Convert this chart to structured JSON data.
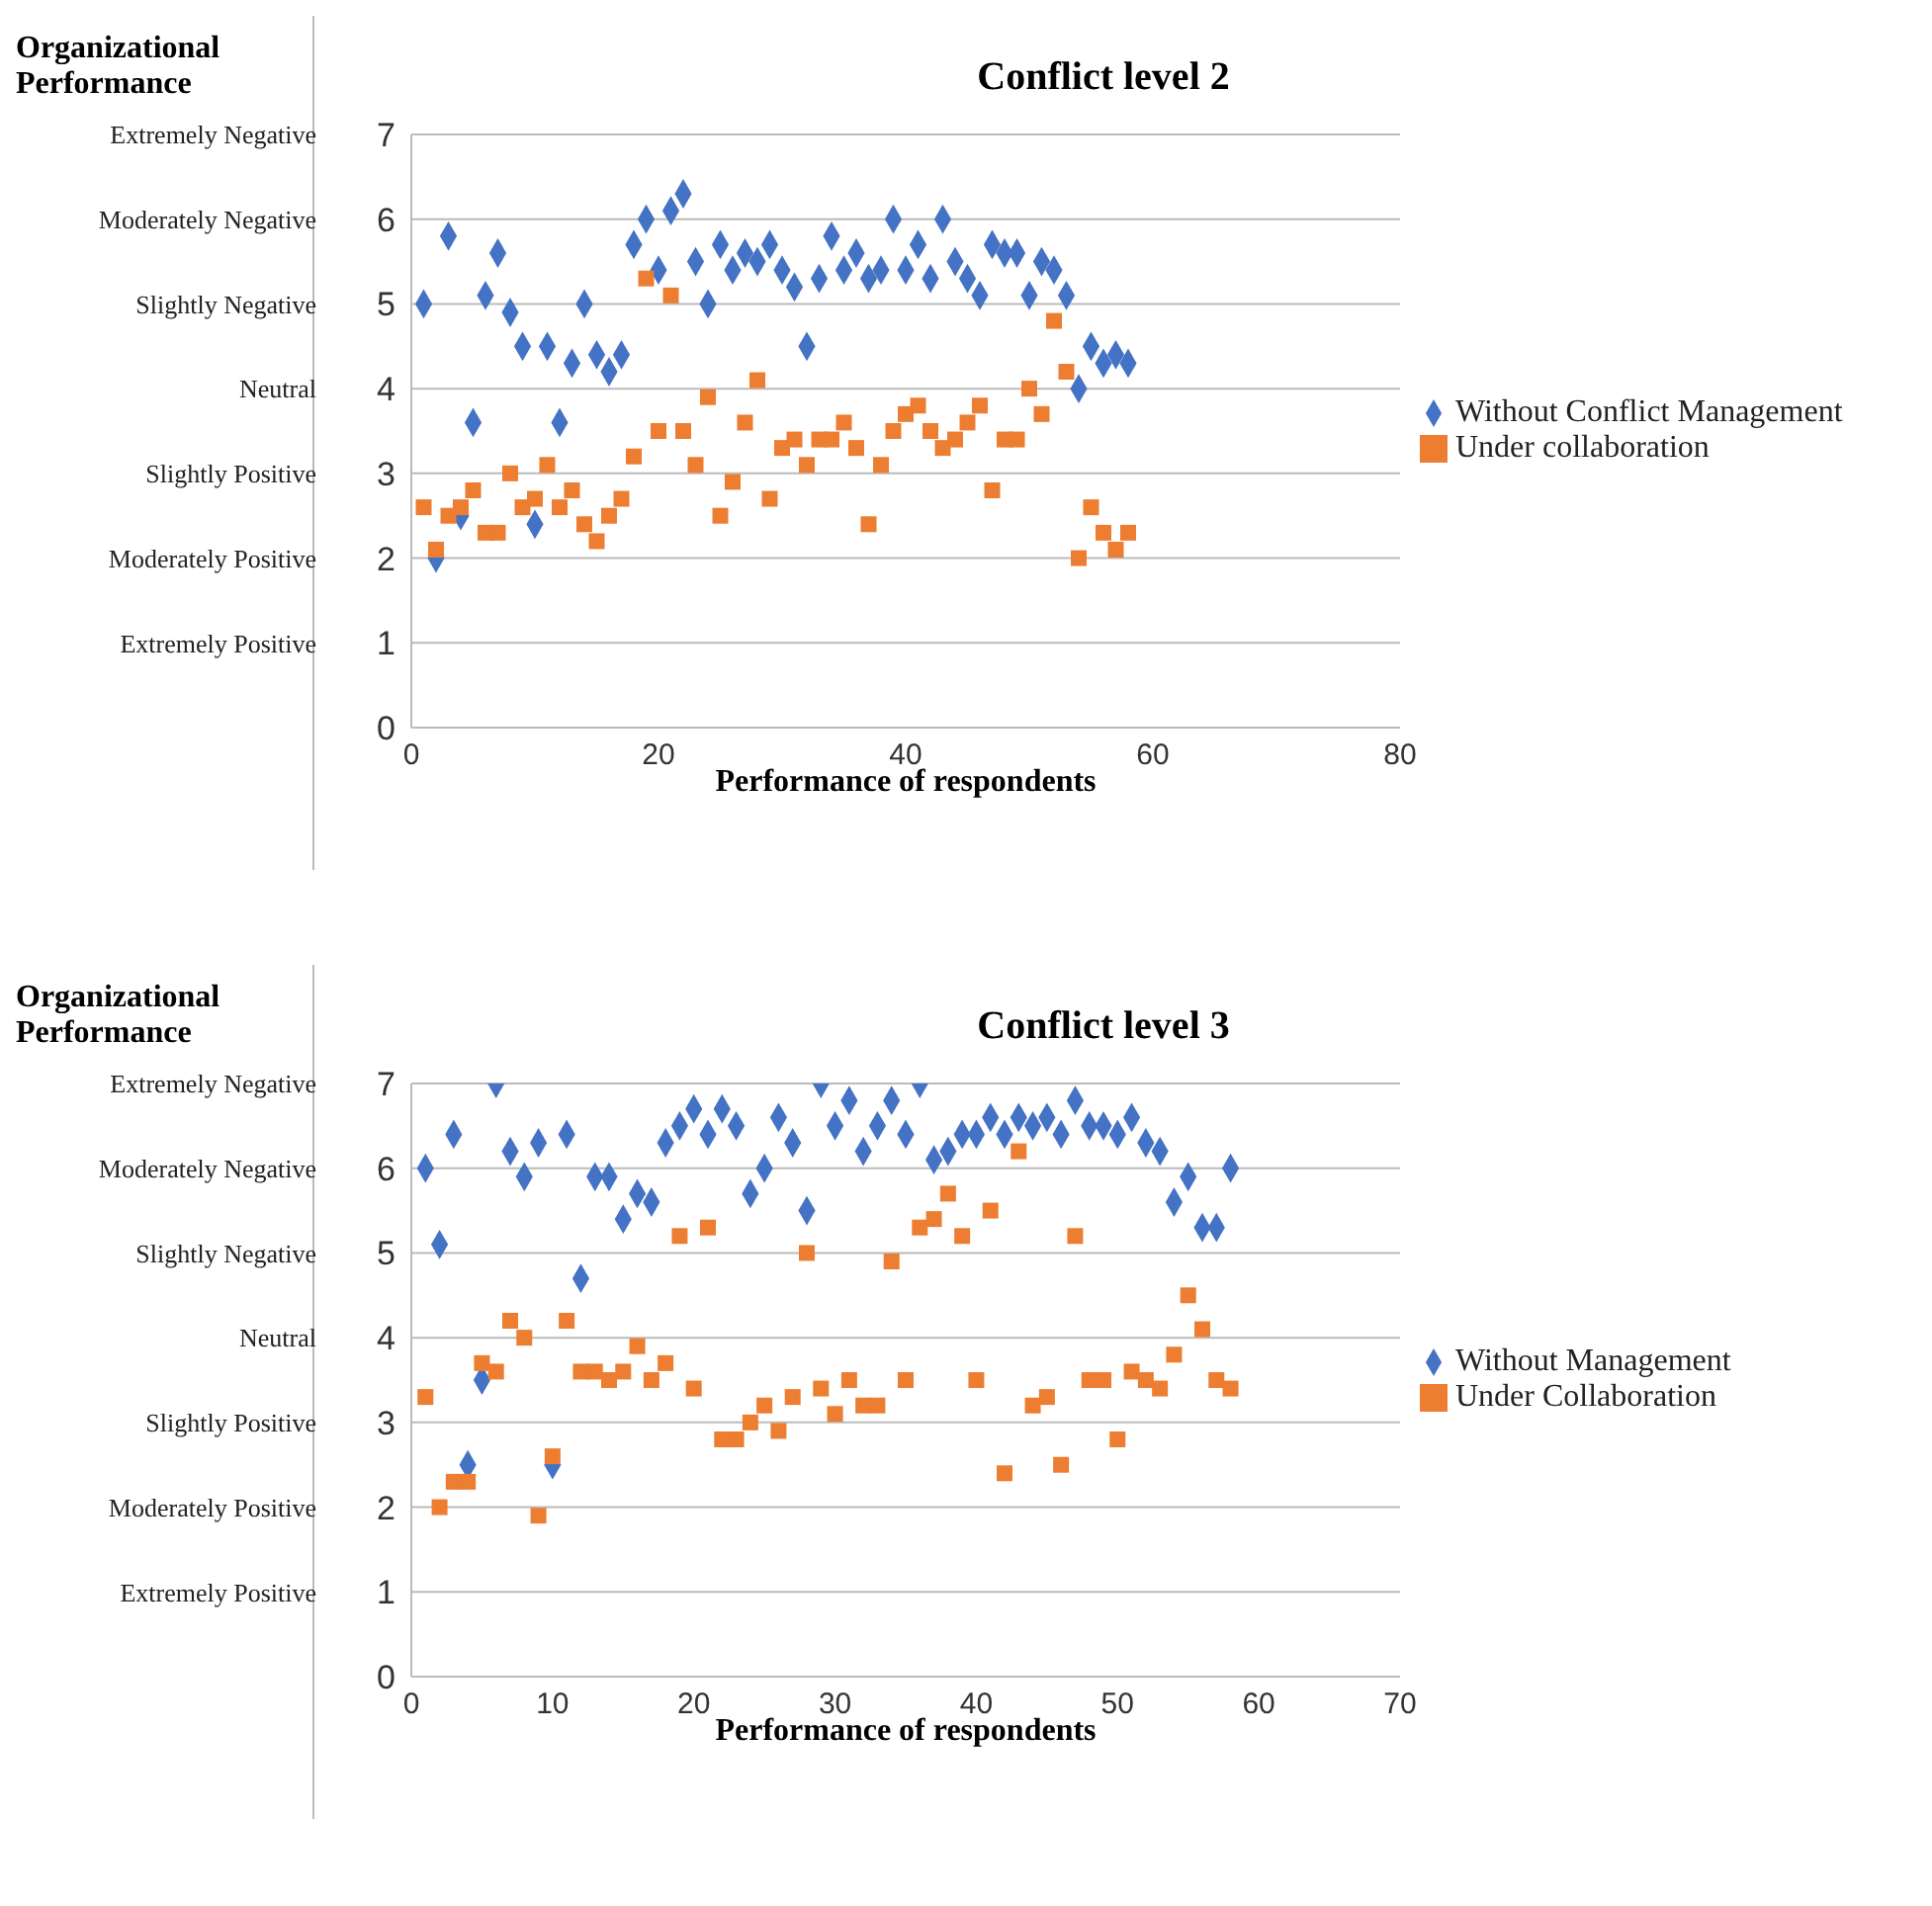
{
  "chart_data": [
    {
      "type": "scatter",
      "title": "Conflict level 2",
      "xlabel": "Performance of respondents",
      "ylabel": "Organizational Performance",
      "x": [
        1,
        2,
        3,
        4,
        5,
        6,
        7,
        8,
        9,
        10,
        11,
        12,
        13,
        14,
        15,
        16,
        17,
        18,
        19,
        20,
        21,
        22,
        23,
        24,
        25,
        26,
        27,
        28,
        29,
        30,
        31,
        32,
        33,
        34,
        35,
        36,
        37,
        38,
        39,
        40,
        41,
        42,
        43,
        44,
        45,
        46,
        47,
        48,
        49,
        50,
        51,
        52,
        53,
        54,
        55,
        56,
        57,
        58
      ],
      "series": [
        {
          "name": "Without Conflict Management",
          "color": "#4472c4",
          "marker": "diamond",
          "values": [
            5.0,
            2.0,
            5.8,
            2.5,
            3.6,
            5.1,
            5.6,
            4.9,
            4.5,
            2.4,
            4.5,
            3.6,
            4.3,
            5.0,
            4.4,
            4.2,
            4.4,
            5.7,
            6.0,
            5.4,
            6.1,
            6.3,
            5.5,
            5.0,
            5.7,
            5.4,
            5.6,
            5.5,
            5.7,
            5.4,
            5.2,
            4.5,
            5.3,
            5.8,
            5.4,
            5.6,
            5.3,
            5.4,
            6.0,
            5.4,
            5.7,
            5.3,
            6.0,
            5.5,
            5.3,
            5.1,
            5.7,
            5.6,
            5.6,
            5.1,
            5.5,
            5.4,
            5.1,
            4.0,
            4.5,
            4.3,
            4.4,
            4.3
          ]
        },
        {
          "name": "Under collaboration",
          "color": "#ed7d31",
          "marker": "square",
          "values": [
            2.6,
            2.1,
            2.5,
            2.6,
            2.8,
            2.3,
            2.3,
            3.0,
            2.6,
            2.7,
            3.1,
            2.6,
            2.8,
            2.4,
            2.2,
            2.5,
            2.7,
            3.2,
            5.3,
            3.5,
            5.1,
            3.5,
            3.1,
            3.9,
            2.5,
            2.9,
            3.6,
            4.1,
            2.7,
            3.3,
            3.4,
            3.1,
            3.4,
            3.4,
            3.6,
            3.3,
            2.4,
            3.1,
            3.5,
            3.7,
            3.8,
            3.5,
            3.3,
            3.4,
            3.6,
            3.8,
            2.8,
            3.4,
            3.4,
            4.0,
            3.7,
            4.8,
            4.2,
            2.0,
            2.6,
            2.3,
            2.1,
            2.3
          ]
        }
      ],
      "xlim": [
        0,
        80
      ],
      "xticks": [
        0,
        20,
        40,
        60,
        80
      ],
      "ylim": [
        0,
        7
      ],
      "yticks": [
        0,
        1,
        2,
        3,
        4,
        5,
        6,
        7
      ],
      "y2_categories": [
        "Extremely Negative",
        "Moderately Negative",
        "Slightly Negative",
        "Neutral",
        "Slightly Positive",
        "Moderately Positive",
        "Extremely Positive",
        null
      ],
      "grid": "y",
      "legend": "right"
    },
    {
      "type": "scatter",
      "title": "Conflict level 3",
      "xlabel": "Performance of respondents",
      "ylabel": "Organizational Performance",
      "x": [
        1,
        2,
        3,
        4,
        5,
        6,
        7,
        8,
        9,
        10,
        11,
        12,
        13,
        14,
        15,
        16,
        17,
        18,
        19,
        20,
        21,
        22,
        23,
        24,
        25,
        26,
        27,
        28,
        29,
        30,
        31,
        32,
        33,
        34,
        35,
        36,
        37,
        38,
        39,
        40,
        41,
        42,
        43,
        44,
        45,
        46,
        47,
        48,
        49,
        50,
        51,
        52,
        53,
        54,
        55,
        56,
        57,
        58
      ],
      "series": [
        {
          "name": "Without Management",
          "color": "#4472c4",
          "marker": "diamond",
          "values": [
            6.0,
            5.1,
            6.4,
            2.5,
            3.5,
            7.0,
            6.2,
            5.9,
            6.3,
            2.5,
            6.4,
            4.7,
            5.9,
            5.9,
            5.4,
            5.7,
            5.6,
            6.3,
            6.5,
            6.7,
            6.4,
            6.7,
            6.5,
            5.7,
            6.0,
            6.6,
            6.3,
            5.5,
            7.0,
            6.5,
            6.8,
            6.2,
            6.5,
            6.8,
            6.4,
            7.0,
            6.1,
            6.2,
            6.4,
            6.4,
            6.6,
            6.4,
            6.6,
            6.5,
            6.6,
            6.4,
            6.8,
            6.5,
            6.5,
            6.4,
            6.6,
            6.3,
            6.2,
            5.6,
            5.9,
            5.3,
            5.3,
            6.0
          ]
        },
        {
          "name": "Under Collaboration",
          "color": "#ed7d31",
          "marker": "square",
          "values": [
            3.3,
            2.0,
            2.3,
            2.3,
            3.7,
            3.6,
            4.2,
            4.0,
            1.9,
            2.6,
            4.2,
            3.6,
            3.6,
            3.5,
            3.6,
            3.9,
            3.5,
            3.7,
            5.2,
            3.4,
            5.3,
            2.8,
            2.8,
            3.0,
            3.2,
            2.9,
            3.3,
            5.0,
            3.4,
            3.1,
            3.5,
            3.2,
            3.2,
            4.9,
            3.5,
            5.3,
            5.4,
            5.7,
            5.2,
            3.5,
            5.5,
            2.4,
            6.2,
            3.2,
            3.3,
            2.5,
            5.2,
            3.5,
            3.5,
            2.8,
            3.6,
            3.5,
            3.4,
            3.8,
            4.5,
            4.1,
            3.5,
            3.4
          ]
        }
      ],
      "xlim": [
        0,
        70
      ],
      "xticks": [
        0,
        10,
        20,
        30,
        40,
        50,
        60,
        70
      ],
      "ylim": [
        0,
        7
      ],
      "yticks": [
        0,
        1,
        2,
        3,
        4,
        5,
        6,
        7
      ],
      "y2_categories": [
        "Extremely Negative",
        "Moderately Negative",
        "Slightly Negative",
        "Neutral",
        "Slightly Positive",
        "Moderately Positive",
        "Extremely Positive",
        null
      ],
      "grid": "y",
      "legend": "right"
    }
  ]
}
